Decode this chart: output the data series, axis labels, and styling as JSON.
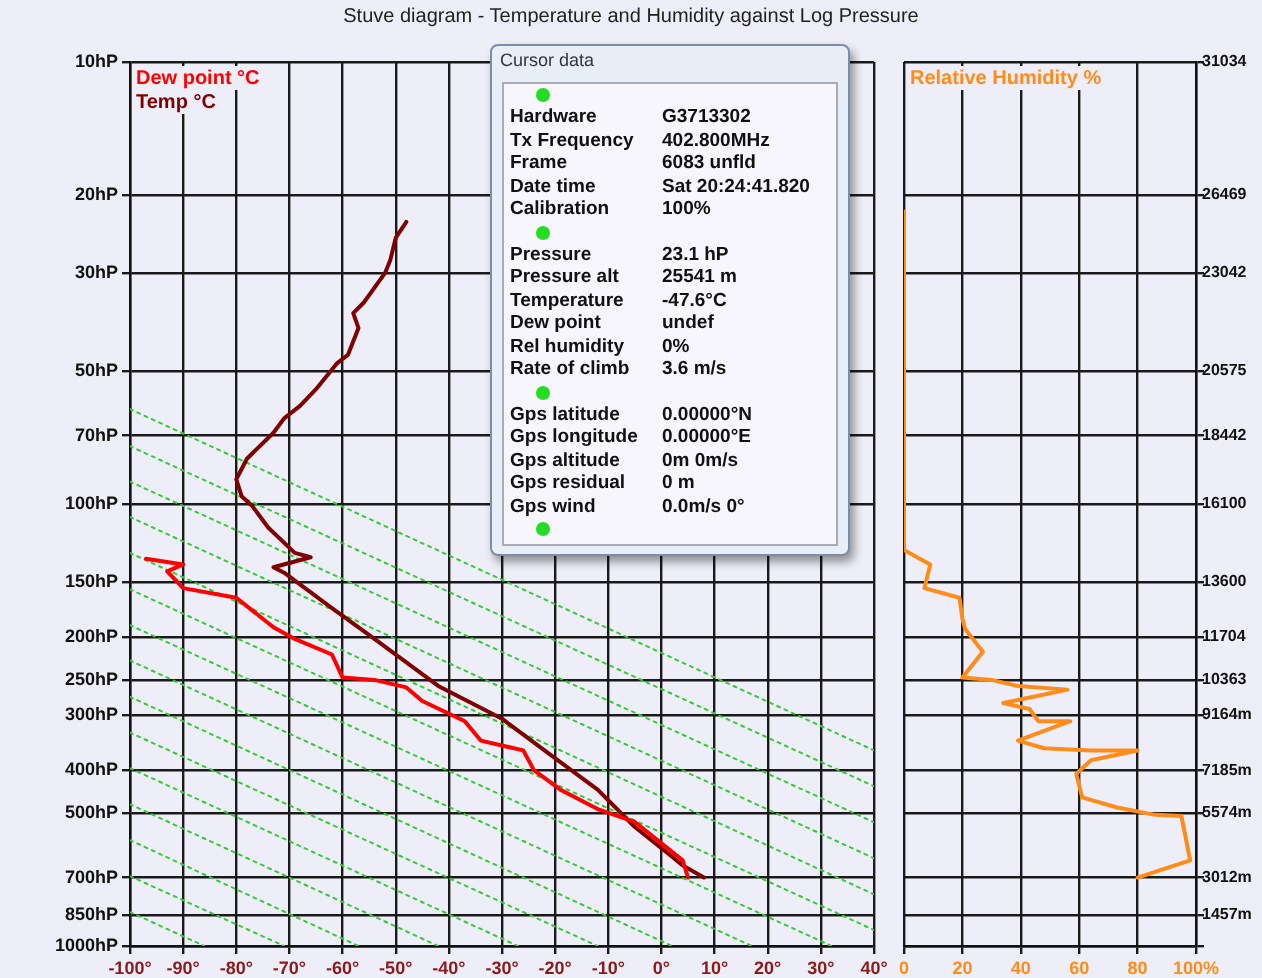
{
  "chart_data": [
    {
      "type": "line",
      "title": "Stuve diagram - Temperature and Humidity against Log Pressure",
      "legend": "top left",
      "grid": true,
      "log": "y",
      "marker": "none",
      "xlim": [
        -100,
        40
      ],
      "xticks": [
        {
          "value": -100,
          "label": "-100°"
        },
        {
          "value": -90,
          "label": "-90°"
        },
        {
          "value": -80,
          "label": "-80°"
        },
        {
          "value": -70,
          "label": "-70°"
        },
        {
          "value": -60,
          "label": "-60°"
        },
        {
          "value": -50,
          "label": "-50°"
        },
        {
          "value": -40,
          "label": "-40°"
        },
        {
          "value": -30,
          "label": "-30°"
        },
        {
          "value": -20,
          "label": "-20°"
        },
        {
          "value": -10,
          "label": "-10°"
        },
        {
          "value": 0,
          "label": "0°"
        },
        {
          "value": 10,
          "label": "10°"
        },
        {
          "value": 20,
          "label": "20°"
        },
        {
          "value": 30,
          "label": "30°"
        },
        {
          "value": 40,
          "label": "40°"
        }
      ],
      "ylim": [
        1000,
        10
      ],
      "yticks": [
        {
          "value": 10,
          "label": "10hP"
        },
        {
          "value": 20,
          "label": "20hP"
        },
        {
          "value": 30,
          "label": "30hP"
        },
        {
          "value": 50,
          "label": "50hP"
        },
        {
          "value": 70,
          "label": "70hP"
        },
        {
          "value": 100,
          "label": "100hP"
        },
        {
          "value": 150,
          "label": "150hP"
        },
        {
          "value": 200,
          "label": "200hP"
        },
        {
          "value": 250,
          "label": "250hP"
        },
        {
          "value": 300,
          "label": "300hP"
        },
        {
          "value": 400,
          "label": "400hP"
        },
        {
          "value": 500,
          "label": "500hP"
        },
        {
          "value": 700,
          "label": "700hP"
        },
        {
          "value": 850,
          "label": "850hP"
        },
        {
          "value": 1000,
          "label": "1000hP"
        }
      ],
      "series": [
        {
          "name": "Dew point °C",
          "color": "#ff0000",
          "line_style": "solid",
          "x": [
            -97,
            -90,
            -93,
            -90,
            -80,
            -73,
            -69,
            -62,
            -60,
            -54,
            -48,
            -45,
            -37,
            -34,
            -26,
            -24,
            -19,
            -12,
            -5,
            4,
            5
          ],
          "values": [
            133,
            137,
            142,
            155,
            163,
            190,
            202,
            219,
            247,
            250,
            260,
            279,
            310,
            343,
            361,
            400,
            443,
            490,
            524,
            640,
            700
          ]
        },
        {
          "name": "Temp °C",
          "color": "#800000",
          "line_style": "solid",
          "x": [
            -48,
            -50,
            -51,
            -52,
            -56,
            -58,
            -57,
            -59,
            -61,
            -65,
            -68,
            -71,
            -73,
            -78,
            -80,
            -79,
            -77,
            -74,
            -69,
            -66,
            -73,
            -71,
            -62,
            -54,
            -42,
            -30,
            -22,
            -12,
            -5,
            2,
            4,
            8
          ],
          "values": [
            23,
            25,
            28,
            30,
            35,
            37,
            40,
            46,
            48,
            55,
            60,
            64,
            69,
            79,
            88,
            96,
            101,
            113,
            129,
            132,
            139,
            143,
            172,
            202,
            258,
            306,
            361,
            443,
            538,
            628,
            657,
            700
          ]
        },
        {
          "color": "#33cc33",
          "line_style": "dotted",
          "x": [
            -100,
            40
          ],
          "values": [
            61,
            361
          ]
        },
        {
          "color": "#33cc33",
          "line_style": "dotted",
          "x": [
            -100,
            40
          ],
          "values": [
            74,
            435
          ]
        },
        {
          "color": "#33cc33",
          "line_style": "dotted",
          "x": [
            -100,
            40
          ],
          "values": [
            89,
            525
          ]
        },
        {
          "color": "#33cc33",
          "line_style": "dotted",
          "x": [
            -100,
            40
          ],
          "values": [
            107,
            633
          ]
        },
        {
          "color": "#33cc33",
          "line_style": "dotted",
          "x": [
            -100,
            40
          ],
          "values": [
            129,
            764
          ]
        },
        {
          "color": "#33cc33",
          "line_style": "dotted",
          "x": [
            -100,
            40
          ],
          "values": [
            156,
            920
          ]
        },
        {
          "color": "#33cc33",
          "line_style": "dotted",
          "x": [
            -100,
            32
          ],
          "values": [
            188,
            1000
          ]
        },
        {
          "color": "#33cc33",
          "line_style": "dotted",
          "x": [
            -100,
            17
          ],
          "values": [
            226,
            1000
          ]
        },
        {
          "color": "#33cc33",
          "line_style": "dotted",
          "x": [
            -100,
            2
          ],
          "values": [
            273,
            1000
          ]
        },
        {
          "color": "#33cc33",
          "line_style": "dotted",
          "x": [
            -100,
            -12
          ],
          "values": [
            329,
            1000
          ]
        },
        {
          "color": "#33cc33",
          "line_style": "dotted",
          "x": [
            -100,
            -27
          ],
          "values": [
            396,
            1000
          ]
        },
        {
          "color": "#33cc33",
          "line_style": "dotted",
          "x": [
            -100,
            -42
          ],
          "values": [
            478,
            1000
          ]
        },
        {
          "color": "#33cc33",
          "line_style": "dotted",
          "x": [
            -100,
            -57
          ],
          "values": [
            576,
            1000
          ]
        },
        {
          "color": "#33cc33",
          "line_style": "dotted",
          "x": [
            -100,
            -71
          ],
          "values": [
            695,
            1000
          ]
        },
        {
          "color": "#33cc33",
          "line_style": "dotted",
          "x": [
            -100,
            -86
          ],
          "values": [
            838,
            1000
          ]
        }
      ]
    },
    {
      "type": "line",
      "legend": "top left",
      "grid": true,
      "log": "y",
      "marker": "none",
      "xlim": [
        0,
        100
      ],
      "xticks": [
        0,
        20,
        40,
        60,
        80,
        {
          "value": 100,
          "label": "100%"
        }
      ],
      "ylim": [
        1000,
        10
      ],
      "yticks": [
        10,
        20,
        30,
        50,
        70,
        100,
        150,
        200,
        250,
        300,
        400,
        500,
        700,
        850,
        1000
      ],
      "tick_labels": "x",
      "annotations": [
        "31034",
        "26469",
        "23042",
        "20575",
        "18442",
        "16100",
        "13600",
        "11704",
        "10363",
        "9164m",
        "7185m",
        "5574m",
        "3012m",
        "1457m"
      ],
      "series": [
        {
          "name": "Relative Humidity %",
          "color": "#ff8c1a",
          "line_style": "solid",
          "x": [
            0,
            0,
            9,
            7,
            19,
            20,
            21,
            27,
            20,
            30,
            39,
            56,
            34,
            43,
            46,
            57,
            39,
            48,
            64,
            80,
            64,
            59,
            61,
            73,
            86,
            95,
            98,
            80
          ],
          "values": [
            21.8,
            127,
            137,
            155,
            163,
            182,
            192,
            216,
            247,
            250,
            258,
            263,
            282,
            291,
            310,
            310,
            343,
            357,
            361,
            361,
            380,
            408,
            461,
            486,
            505,
            508,
            640,
            700
          ]
        }
      ]
    },
    {
      "type": "other",
      "title": "Cursor data",
      "annotations": [
        "Hardware",
        "G3713302",
        "Tx Frequency",
        "402.800MHz",
        "Frame",
        "6083 unfld",
        "Date time",
        "Sat 20:24:41.820",
        "Calibration",
        "100%",
        "Pressure",
        "23.1 hP",
        "Pressure alt",
        "25541 m",
        "Temperature",
        "-47.6°C",
        "Dew point",
        "undef",
        "Rel humidity",
        "0%",
        "Rate of climb",
        "3.6 m/s",
        "Gps latitude",
        "0.00000°N",
        "Gps longitude",
        "0.00000°E",
        "Gps altitude",
        "0m 0m/s",
        "Gps residual",
        "0 m",
        "Gps wind",
        "0.0m/s 0°"
      ]
    }
  ]
}
